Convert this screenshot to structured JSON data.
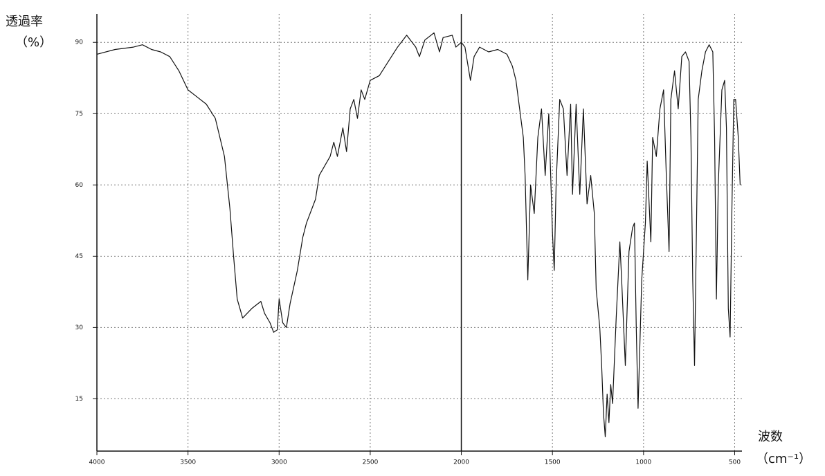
{
  "chart_data": {
    "type": "line",
    "y_label": "透過率",
    "y_unit": "（%）",
    "x_label": "波数",
    "x_unit": "（cm⁻¹）",
    "xlim": [
      4000,
      460
    ],
    "ylim": [
      4,
      96
    ],
    "xticks": [
      4000,
      3500,
      3000,
      2500,
      2000,
      1500,
      1000,
      500
    ],
    "yticks": [
      90,
      75,
      60,
      45,
      30,
      15
    ],
    "grid": true,
    "scale_break": 2000,
    "color": "#111111",
    "x": [
      4000,
      3900,
      3800,
      3750,
      3700,
      3650,
      3600,
      3550,
      3500,
      3450,
      3400,
      3350,
      3300,
      3270,
      3250,
      3230,
      3200,
      3150,
      3100,
      3080,
      3050,
      3030,
      3010,
      3000,
      2980,
      2960,
      2940,
      2900,
      2870,
      2850,
      2800,
      2780,
      2750,
      2720,
      2700,
      2680,
      2650,
      2630,
      2610,
      2590,
      2570,
      2550,
      2530,
      2500,
      2450,
      2400,
      2350,
      2300,
      2250,
      2230,
      2200,
      2150,
      2120,
      2100,
      2050,
      2030,
      2000,
      1980,
      1950,
      1930,
      1900,
      1850,
      1800,
      1750,
      1720,
      1700,
      1680,
      1660,
      1650,
      1635,
      1620,
      1600,
      1580,
      1560,
      1540,
      1520,
      1500,
      1490,
      1480,
      1460,
      1440,
      1420,
      1400,
      1390,
      1370,
      1350,
      1330,
      1310,
      1290,
      1270,
      1260,
      1240,
      1230,
      1220,
      1210,
      1200,
      1190,
      1180,
      1170,
      1150,
      1130,
      1120,
      1100,
      1080,
      1060,
      1050,
      1040,
      1030,
      1010,
      990,
      980,
      960,
      950,
      930,
      910,
      890,
      875,
      860,
      850,
      830,
      810,
      790,
      770,
      750,
      740,
      730,
      720,
      710,
      700,
      680,
      660,
      640,
      620,
      610,
      600,
      590,
      570,
      555,
      545,
      535,
      525,
      515,
      505,
      495,
      480,
      470
    ],
    "values": [
      87.5,
      88.5,
      89,
      89.5,
      88.5,
      88,
      87,
      84,
      80,
      78.5,
      77,
      74,
      66,
      55,
      45,
      36,
      32,
      34,
      35.5,
      33,
      31,
      29,
      29.5,
      36,
      31,
      30,
      35,
      42,
      49,
      52,
      57,
      62,
      64,
      66,
      69,
      66,
      72,
      67,
      76,
      78,
      74,
      80,
      78,
      82,
      83,
      86,
      89,
      91.5,
      89,
      87,
      90.5,
      92,
      88,
      91,
      91.5,
      89,
      90,
      89,
      82,
      87,
      89,
      88,
      88.5,
      87.5,
      85,
      82,
      76,
      70,
      62,
      40,
      60,
      54,
      70,
      76,
      62,
      75,
      50,
      42,
      60,
      78,
      76,
      62,
      77,
      58,
      77,
      58,
      76,
      56,
      62,
      54,
      38,
      30,
      22,
      12,
      7,
      16,
      10,
      18,
      14,
      32,
      48,
      40,
      22,
      46,
      51,
      52,
      30,
      13,
      40,
      52,
      65,
      48,
      70,
      66,
      76,
      80,
      62,
      46,
      78,
      84,
      76,
      87,
      88,
      86,
      70,
      40,
      22,
      50,
      78,
      84,
      88,
      89.5,
      88,
      70,
      36,
      60,
      80,
      82,
      72,
      34,
      28,
      55,
      78,
      78,
      70,
      60
    ]
  }
}
